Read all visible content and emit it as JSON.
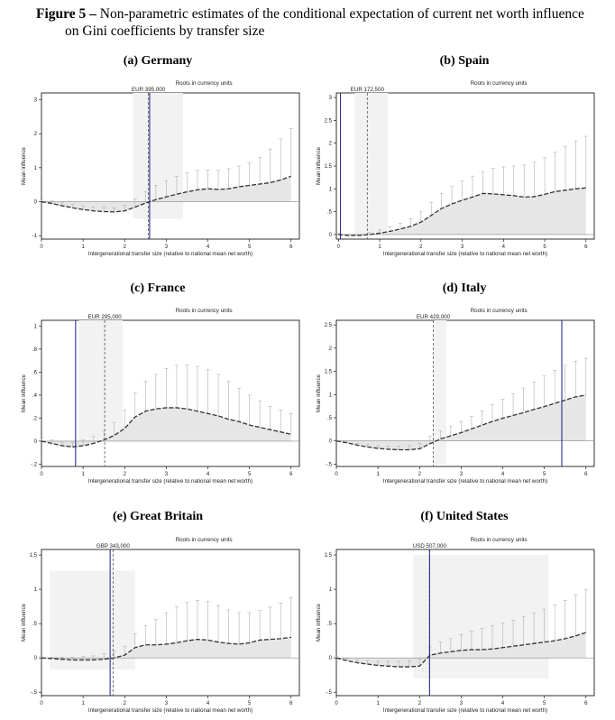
{
  "figure": {
    "label": "Figure 5 –",
    "caption_line1": "Non-parametric estimates of the conditional expectation of current net worth influence",
    "caption_line2": "on Gini coefficients by transfer size"
  },
  "colors": {
    "mean_line": "#333333",
    "area_fill": "#e6e6e6",
    "ci_whisker": "#b0b0b0",
    "shade_band": "#f2f2f2",
    "median_line": "#1a1a8c",
    "mean_marker": "#555555"
  },
  "chart_data": [
    {
      "type": "area",
      "panel_label": "(a)",
      "title": "Germany",
      "roots_label": "Roots in currency units",
      "root_label": "EUR 395,000",
      "xlabel": "Intergenerational transfer size (relative to national mean net worth)",
      "ylabel": "Mean influence",
      "xlim": [
        0,
        6.2
      ],
      "ylim": [
        -1.1,
        3.2
      ],
      "xticks": [
        0,
        1,
        2,
        3,
        4,
        5,
        6
      ],
      "yticks": [
        -1,
        0,
        1,
        2,
        3
      ],
      "ytick_labels": [
        "-1",
        "0",
        "1",
        "2",
        "3"
      ],
      "shade_x": [
        2.2,
        3.4
      ],
      "shade_y": [
        -0.5,
        3.2
      ],
      "median_x": 2.6,
      "mean_x": 2.57,
      "x": [
        0,
        0.25,
        0.5,
        0.75,
        1,
        1.25,
        1.5,
        1.75,
        2,
        2.25,
        2.5,
        2.75,
        3,
        3.25,
        3.5,
        3.75,
        4,
        4.25,
        4.5,
        4.75,
        5,
        5.25,
        5.5,
        5.75,
        6
      ],
      "y": [
        0,
        -0.05,
        -0.12,
        -0.18,
        -0.23,
        -0.27,
        -0.29,
        -0.3,
        -0.27,
        -0.16,
        -0.04,
        0.06,
        0.14,
        0.22,
        0.29,
        0.35,
        0.38,
        0.36,
        0.38,
        0.44,
        0.48,
        0.52,
        0.56,
        0.64,
        0.75
      ],
      "ci_upper": [
        0.05,
        0.02,
        -0.03,
        -0.08,
        -0.12,
        -0.15,
        -0.17,
        -0.18,
        -0.1,
        0.08,
        0.3,
        0.48,
        0.62,
        0.75,
        0.85,
        0.92,
        0.93,
        0.92,
        0.97,
        1.05,
        1.15,
        1.3,
        1.55,
        1.85,
        2.15
      ]
    },
    {
      "type": "area",
      "panel_label": "(b)",
      "title": "Spain",
      "roots_label": "Roots in currency units",
      "root_label": "EUR 172,500",
      "xlabel": "Intergenerational transfer size (relative to national mean net worth)",
      "ylabel": "Mean influence",
      "xlim": [
        -0.05,
        6.2
      ],
      "ylim": [
        -0.1,
        3.1
      ],
      "xticks": [
        0,
        1,
        2,
        3,
        4,
        5,
        6
      ],
      "yticks": [
        0,
        0.5,
        1,
        1.5,
        2,
        2.5,
        3
      ],
      "ytick_labels": [
        "0",
        ".5",
        "1",
        "1.5",
        "2",
        "2.5",
        "3"
      ],
      "shade_x": [
        0.4,
        1.2
      ],
      "shade_y": [
        0,
        3.1
      ],
      "median_x": 0.05,
      "mean_x": 0.7,
      "x": [
        0,
        0.25,
        0.5,
        0.75,
        1,
        1.25,
        1.5,
        1.75,
        2,
        2.25,
        2.5,
        2.75,
        3,
        3.25,
        3.5,
        3.75,
        4,
        4.25,
        4.5,
        4.75,
        5,
        5.25,
        5.5,
        5.75,
        6
      ],
      "y": [
        0,
        -0.02,
        -0.02,
        0,
        0.03,
        0.07,
        0.12,
        0.18,
        0.27,
        0.42,
        0.57,
        0.67,
        0.75,
        0.82,
        0.9,
        0.89,
        0.87,
        0.85,
        0.82,
        0.83,
        0.88,
        0.94,
        0.97,
        1.0,
        1.02
      ],
      "ci_upper": [
        0.02,
        0,
        0,
        0.05,
        0.1,
        0.17,
        0.25,
        0.35,
        0.5,
        0.7,
        0.9,
        1.05,
        1.17,
        1.28,
        1.38,
        1.45,
        1.48,
        1.5,
        1.52,
        1.58,
        1.68,
        1.8,
        1.92,
        2.05,
        2.15
      ]
    },
    {
      "type": "area",
      "panel_label": "(c)",
      "title": "France",
      "roots_label": "Roots in currency units",
      "root_label": "EUR 295,000",
      "xlabel": "Intergenerational transfer size (relative to national mean net worth)",
      "ylabel": "Mean influence",
      "xlim": [
        0,
        6.2
      ],
      "ylim": [
        -0.22,
        1.05
      ],
      "xticks": [
        0,
        1,
        2,
        3,
        4,
        5,
        6
      ],
      "yticks": [
        -0.2,
        0,
        0.2,
        0.4,
        0.6,
        0.8,
        1
      ],
      "ytick_labels": [
        "-.2",
        "0",
        ".2",
        ".4",
        ".6",
        ".8",
        "1"
      ],
      "shade_x": [
        0.9,
        1.95
      ],
      "shade_y": [
        0,
        1.05
      ],
      "median_x": 0.82,
      "mean_x": 1.52,
      "x": [
        0,
        0.25,
        0.5,
        0.75,
        1,
        1.25,
        1.5,
        1.75,
        2,
        2.25,
        2.5,
        2.75,
        3,
        3.25,
        3.5,
        3.75,
        4,
        4.25,
        4.5,
        4.75,
        5,
        5.25,
        5.5,
        5.75,
        6
      ],
      "y": [
        0,
        -0.02,
        -0.04,
        -0.05,
        -0.04,
        -0.02,
        0.01,
        0.05,
        0.11,
        0.21,
        0.26,
        0.28,
        0.29,
        0.29,
        0.28,
        0.26,
        0.24,
        0.22,
        0.19,
        0.17,
        0.14,
        0.12,
        0.1,
        0.08,
        0.06
      ],
      "ci_upper": [
        0.02,
        0.01,
        -0.01,
        -0.01,
        0.01,
        0.04,
        0.09,
        0.16,
        0.27,
        0.42,
        0.52,
        0.58,
        0.63,
        0.66,
        0.66,
        0.65,
        0.62,
        0.58,
        0.52,
        0.46,
        0.4,
        0.35,
        0.3,
        0.27,
        0.24
      ]
    },
    {
      "type": "area",
      "panel_label": "(d)",
      "title": "Italy",
      "roots_label": "Roots in currency units",
      "root_label": "EUR 429,000",
      "xlabel": "Intergenerational transfer size (relative to national mean net worth)",
      "ylabel": "Mean influence",
      "xlim": [
        0,
        6.2
      ],
      "ylim": [
        -0.55,
        2.6
      ],
      "xticks": [
        0,
        1,
        2,
        3,
        4,
        5,
        6
      ],
      "yticks": [
        -0.5,
        0,
        0.5,
        1,
        1.5,
        2,
        2.5
      ],
      "ytick_labels": [
        "-.5",
        "0",
        ".5",
        "1",
        "1.5",
        "2",
        "2.5"
      ],
      "shade_x": [
        2.35,
        2.65
      ],
      "shade_y": [
        -0.5,
        2.6
      ],
      "median_x": 5.42,
      "mean_x": 2.33,
      "x": [
        0,
        0.25,
        0.5,
        0.75,
        1,
        1.25,
        1.5,
        1.75,
        2,
        2.25,
        2.5,
        2.75,
        3,
        3.25,
        3.5,
        3.75,
        4,
        4.25,
        4.5,
        4.75,
        5,
        5.25,
        5.5,
        5.75,
        6
      ],
      "y": [
        0,
        -0.04,
        -0.09,
        -0.13,
        -0.16,
        -0.18,
        -0.19,
        -0.19,
        -0.17,
        -0.06,
        0.04,
        0.11,
        0.18,
        0.26,
        0.34,
        0.42,
        0.49,
        0.55,
        0.61,
        0.68,
        0.74,
        0.81,
        0.88,
        0.95,
        0.99
      ],
      "ci_upper": [
        0.02,
        -0.01,
        -0.05,
        -0.08,
        -0.1,
        -0.11,
        -0.11,
        -0.1,
        -0.05,
        0.1,
        0.22,
        0.32,
        0.42,
        0.53,
        0.65,
        0.78,
        0.9,
        1.02,
        1.14,
        1.27,
        1.4,
        1.52,
        1.63,
        1.72,
        1.78
      ]
    },
    {
      "type": "area",
      "panel_label": "(e)",
      "title": "Great Britain",
      "roots_label": "Roots in currency units",
      "root_label": "GBP 343,000",
      "xlabel": "Intergenerational transfer size (relative to national mean net worth)",
      "ylabel": "Mean influence",
      "xlim": [
        0,
        6.2
      ],
      "ylim": [
        -0.55,
        1.58
      ],
      "xticks": [
        0,
        1,
        2,
        3,
        4,
        5,
        6
      ],
      "yticks": [
        -0.5,
        0,
        0.5,
        1,
        1.5
      ],
      "ytick_labels": [
        "-.5",
        "0",
        ".5",
        "1",
        "1.5"
      ],
      "shade_x": [
        0.2,
        2.25
      ],
      "shade_y": [
        -0.17,
        1.27
      ],
      "median_x": 1.65,
      "mean_x": 1.72,
      "x": [
        0,
        0.25,
        0.5,
        0.75,
        1,
        1.25,
        1.5,
        1.75,
        2,
        2.25,
        2.5,
        2.75,
        3,
        3.25,
        3.5,
        3.75,
        4,
        4.25,
        4.5,
        4.75,
        5,
        5.25,
        5.5,
        5.75,
        6
      ],
      "y": [
        0,
        -0.01,
        -0.02,
        -0.03,
        -0.03,
        -0.03,
        -0.02,
        0,
        0.04,
        0.15,
        0.19,
        0.19,
        0.2,
        0.22,
        0.25,
        0.27,
        0.26,
        0.23,
        0.21,
        0.2,
        0.22,
        0.26,
        0.27,
        0.28,
        0.3
      ],
      "ci_upper": [
        0.02,
        0.01,
        0.01,
        0.01,
        0.02,
        0.03,
        0.06,
        0.1,
        0.17,
        0.35,
        0.47,
        0.56,
        0.66,
        0.75,
        0.81,
        0.84,
        0.82,
        0.76,
        0.7,
        0.66,
        0.66,
        0.69,
        0.74,
        0.8,
        0.88
      ]
    },
    {
      "type": "area",
      "panel_label": "(f)",
      "title": "United States",
      "roots_label": "Roots in currency units",
      "root_label": "USD 507,000",
      "xlabel": "Intergenerational transfer size (relative to national mean net worth)",
      "ylabel": "Mean influence",
      "xlim": [
        0,
        6.2
      ],
      "ylim": [
        -0.55,
        1.58
      ],
      "xticks": [
        0,
        1,
        2,
        3,
        4,
        5,
        6
      ],
      "yticks": [
        -0.5,
        0,
        0.5,
        1,
        1.5
      ],
      "ytick_labels": [
        "-.5",
        "0",
        ".5",
        "1",
        "1.5"
      ],
      "shade_x": [
        1.85,
        5.1
      ],
      "shade_y": [
        -0.3,
        1.5
      ],
      "median_x": 2.24,
      "mean_x": 2.24,
      "x": [
        0,
        0.25,
        0.5,
        0.75,
        1,
        1.25,
        1.5,
        1.75,
        2,
        2.25,
        2.5,
        2.75,
        3,
        3.25,
        3.5,
        3.75,
        4,
        4.25,
        4.5,
        4.75,
        5,
        5.25,
        5.5,
        5.75,
        6
      ],
      "y": [
        0,
        -0.04,
        -0.07,
        -0.09,
        -0.11,
        -0.12,
        -0.13,
        -0.13,
        -0.12,
        0.04,
        0.07,
        0.09,
        0.11,
        0.12,
        0.12,
        0.13,
        0.15,
        0.17,
        0.19,
        0.21,
        0.23,
        0.25,
        0.28,
        0.32,
        0.37
      ],
      "ci_upper": [
        0.02,
        -0.01,
        -0.03,
        -0.04,
        -0.05,
        -0.05,
        -0.05,
        -0.04,
        -0.02,
        0.16,
        0.23,
        0.28,
        0.34,
        0.39,
        0.43,
        0.47,
        0.51,
        0.55,
        0.6,
        0.65,
        0.71,
        0.77,
        0.84,
        0.92,
        1.0
      ]
    }
  ]
}
